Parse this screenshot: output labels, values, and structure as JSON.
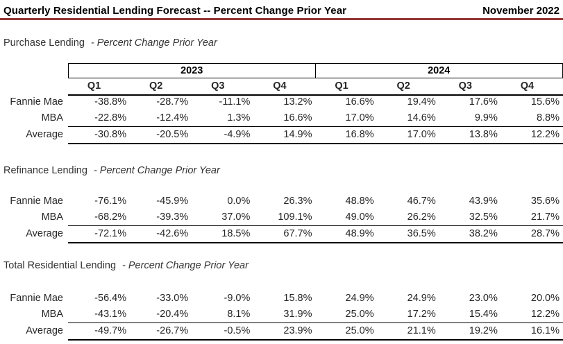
{
  "header": {
    "title": "Quarterly Residential Lending Forecast -- Percent Change Prior Year",
    "date": "November 2022",
    "underline_color": "#953735"
  },
  "table": {
    "year_groups": [
      "2023",
      "2024"
    ],
    "quarter_headers": [
      "Q1",
      "Q2",
      "Q3",
      "Q4",
      "Q1",
      "Q2",
      "Q3",
      "Q4"
    ]
  },
  "sections": [
    {
      "title": "Purchase Lending",
      "subtitle": "- Percent Change Prior Year",
      "rows": [
        {
          "label": "Fannie Mae",
          "values": [
            "-38.8%",
            "-28.7%",
            "-11.1%",
            "13.2%",
            "16.6%",
            "19.4%",
            "17.6%",
            "15.6%"
          ]
        },
        {
          "label": "MBA",
          "values": [
            "-22.8%",
            "-12.4%",
            "1.3%",
            "16.6%",
            "17.0%",
            "14.6%",
            "9.9%",
            "8.8%"
          ]
        },
        {
          "label": "Average",
          "values": [
            "-30.8%",
            "-20.5%",
            "-4.9%",
            "14.9%",
            "16.8%",
            "17.0%",
            "13.8%",
            "12.2%"
          ]
        }
      ]
    },
    {
      "title": "Refinance Lending",
      "subtitle": "- Percent Change Prior Year",
      "rows": [
        {
          "label": "Fannie Mae",
          "values": [
            "-76.1%",
            "-45.9%",
            "0.0%",
            "26.3%",
            "48.8%",
            "46.7%",
            "43.9%",
            "35.6%"
          ]
        },
        {
          "label": "MBA",
          "values": [
            "-68.2%",
            "-39.3%",
            "37.0%",
            "109.1%",
            "49.0%",
            "26.2%",
            "32.5%",
            "21.7%"
          ]
        },
        {
          "label": "Average",
          "values": [
            "-72.1%",
            "-42.6%",
            "18.5%",
            "67.7%",
            "48.9%",
            "36.5%",
            "38.2%",
            "28.7%"
          ]
        }
      ]
    },
    {
      "title": "Total Residential Lending",
      "subtitle": "- Percent Change Prior Year",
      "rows": [
        {
          "label": "Fannie Mae",
          "values": [
            "-56.4%",
            "-33.0%",
            "-9.0%",
            "15.8%",
            "24.9%",
            "24.9%",
            "23.0%",
            "20.0%"
          ]
        },
        {
          "label": "MBA",
          "values": [
            "-43.1%",
            "-20.4%",
            "8.1%",
            "31.9%",
            "25.0%",
            "17.2%",
            "15.4%",
            "12.2%"
          ]
        },
        {
          "label": "Average",
          "values": [
            "-49.7%",
            "-26.7%",
            "-0.5%",
            "23.9%",
            "25.0%",
            "21.1%",
            "19.2%",
            "16.1%"
          ]
        }
      ]
    }
  ]
}
